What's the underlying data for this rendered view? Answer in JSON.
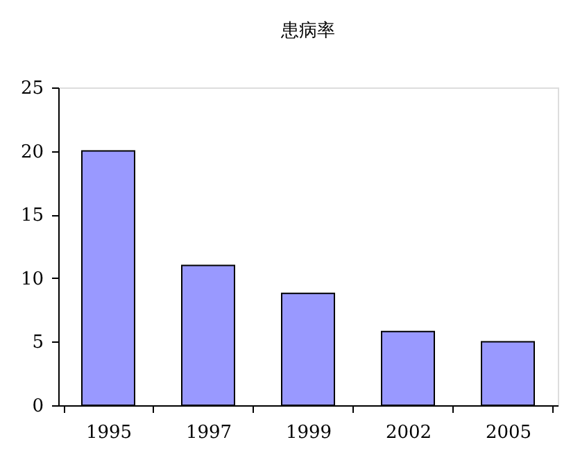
{
  "chart_data": {
    "type": "bar",
    "title": "患病率",
    "categories": [
      "1995",
      "1997",
      "1999",
      "2002",
      "2005"
    ],
    "values": [
      20,
      11,
      8.8,
      5.8,
      5
    ],
    "color": "#9999ff",
    "ylim": [
      0,
      25
    ],
    "yticks": [
      0,
      5,
      10,
      15,
      20,
      25
    ],
    "grid": false,
    "legend": false
  }
}
